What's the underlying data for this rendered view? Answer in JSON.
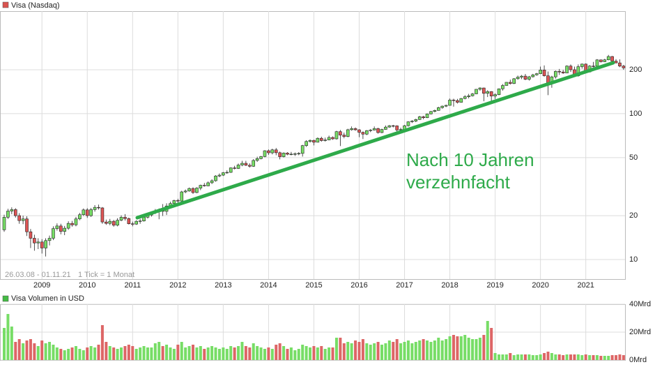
{
  "chart_data": [
    {
      "type": "candlestick",
      "title": "Visa (Nasdaq)",
      "color": "#d9534f",
      "date_range": "26.03.08 - 01.11.21",
      "tick_note": "1 Tick = 1 Monat",
      "annotation": [
        "Nach 10 Jahren",
        "verzehnfacht"
      ],
      "log_scale": true,
      "grid": true,
      "up_color": "#77dd66",
      "down_color": "#dd5555",
      "ylim": [
        7.35,
        504
      ],
      "yticks": [
        10,
        20,
        50,
        100,
        200
      ],
      "categories": [
        null,
        null,
        null,
        null,
        null,
        null,
        null,
        null,
        null,
        null,
        "2009",
        null,
        null,
        null,
        null,
        null,
        null,
        null,
        null,
        null,
        null,
        null,
        "2010",
        null,
        null,
        null,
        null,
        null,
        null,
        null,
        null,
        null,
        null,
        null,
        "2011",
        null,
        null,
        null,
        null,
        null,
        null,
        null,
        null,
        null,
        null,
        null,
        "2012",
        null,
        null,
        null,
        null,
        null,
        null,
        null,
        null,
        null,
        null,
        null,
        "2013",
        null,
        null,
        null,
        null,
        null,
        null,
        null,
        null,
        null,
        null,
        null,
        "2014",
        null,
        null,
        null,
        null,
        null,
        null,
        null,
        null,
        null,
        null,
        null,
        "2015",
        null,
        null,
        null,
        null,
        null,
        null,
        null,
        null,
        null,
        null,
        null,
        "2016",
        null,
        null,
        null,
        null,
        null,
        null,
        null,
        null,
        null,
        null,
        null,
        "2017",
        null,
        null,
        null,
        null,
        null,
        null,
        null,
        null,
        null,
        null,
        null,
        "2018",
        null,
        null,
        null,
        null,
        null,
        null,
        null,
        null,
        null,
        null,
        null,
        "2019",
        null,
        null,
        null,
        null,
        null,
        null,
        null,
        null,
        null,
        null,
        null,
        "2020",
        null,
        null,
        null,
        null,
        null,
        null,
        null,
        null,
        null,
        null,
        null,
        "2021",
        null,
        null,
        null,
        null,
        null,
        null,
        null,
        null,
        null,
        null
      ],
      "open": [
        16,
        19.5,
        21.5,
        22,
        20,
        18.5,
        19,
        15.5,
        14,
        13,
        13.2,
        12,
        13.5,
        14,
        16.3,
        17,
        15.6,
        16.4,
        17.7,
        17.3,
        19,
        20.3,
        21.9,
        20,
        22,
        22.8,
        22.6,
        18.1,
        17.7,
        18.3,
        17.2,
        18.6,
        19.5,
        19.1,
        17.6,
        17.5,
        18.3,
        18.4,
        19.5,
        20.2,
        21.1,
        21.4,
        22,
        21.4,
        23.3,
        24.2,
        25.4,
        25.2,
        29.1,
        29.5,
        30.7,
        28.8,
        30.9,
        32.3,
        32,
        33.6,
        34.7,
        37.4,
        37.9,
        39.4,
        39.6,
        42.5,
        42.1,
        44.5,
        45.7,
        44.3,
        43.6,
        47.8,
        49.2,
        50.8,
        55.7,
        53.9,
        56.5,
        54,
        50.7,
        53.7,
        52.7,
        52.8,
        53.1,
        53.4,
        60.4,
        64.5,
        65.6,
        63.7,
        67.8,
        65.4,
        66,
        68.7,
        67.2,
        75.3,
        71.3,
        69.7,
        77.6,
        79,
        77.5,
        74.5,
        72.4,
        76.5,
        77.2,
        79,
        74.2,
        78,
        80.9,
        82.7,
        82.5,
        77.3,
        78,
        82.7,
        88,
        88.9,
        91.2,
        95.2,
        93.8,
        99.6,
        103.5,
        105.2,
        110,
        112.6,
        114,
        124,
        123,
        119.6,
        127,
        130.7,
        132.5,
        136.7,
        146.9,
        150,
        137.8,
        141.7,
        132,
        135,
        148,
        156,
        164,
        161,
        173.5,
        178,
        180.8,
        172,
        179,
        184.5,
        187.9,
        199,
        181.8,
        161,
        178.7,
        195,
        193,
        190,
        212,
        200,
        181.7,
        210,
        218.7,
        193,
        212,
        211.7,
        233.6,
        227,
        233.8,
        246.4,
        229,
        222.8,
        211.8
      ],
      "high": [
        20.3,
        22.3,
        22.8,
        22.5,
        20.8,
        20,
        19.8,
        16.2,
        14.8,
        14,
        13.8,
        14,
        14.6,
        16.9,
        17.7,
        17.6,
        17,
        18.3,
        18.4,
        19.6,
        20.9,
        22.4,
        22.5,
        22.6,
        23.6,
        23.8,
        22.9,
        18.8,
        19,
        18.7,
        19.2,
        20.1,
        20.5,
        19.4,
        18.2,
        18.6,
        19,
        20,
        20.6,
        21.4,
        22.2,
        22.4,
        24,
        24.3,
        24.9,
        25.7,
        26.1,
        29.6,
        30.2,
        31.2,
        31.3,
        31.3,
        32.6,
        33.5,
        34.3,
        35.5,
        37.9,
        38.9,
        39.8,
        40.9,
        42.8,
        43.9,
        45.5,
        47.5,
        47.5,
        45.7,
        48.8,
        50.7,
        51.3,
        56.2,
        56.8,
        57.5,
        58.2,
        55,
        54.3,
        54.5,
        54.7,
        54.2,
        54.5,
        61.1,
        65.7,
        66.6,
        66.3,
        68.7,
        69.5,
        68.5,
        70.7,
        69.8,
        76.3,
        77.3,
        74.2,
        78.8,
        81.7,
        80.5,
        78.3,
        75.4,
        77.2,
        78.5,
        81.7,
        80,
        78.8,
        83,
        83.6,
        83.8,
        83.2,
        80.1,
        83.8,
        88.6,
        90.3,
        92.3,
        96.7,
        96.7,
        100.3,
        104.2,
        106.6,
        111.5,
        113.7,
        115.3,
        126.9,
        126.6,
        126.3,
        128.1,
        133.9,
        136.6,
        138.6,
        147.5,
        151.6,
        150.9,
        144.8,
        142.6,
        137.8,
        148.8,
        159.5,
        164.5,
        171.1,
        175.2,
        182.4,
        184.1,
        187,
        181.4,
        187.5,
        190.2,
        210.1,
        214.2,
        194.5,
        181.7,
        197.6,
        202.5,
        199.5,
        214.2,
        217.4,
        210.1,
        217.5,
        220.4,
        220.8,
        215.3,
        226.2,
        236.5,
        235.2,
        237.5,
        252.7,
        248.5,
        236.3,
        235.3,
        216
      ],
      "low": [
        15.5,
        19,
        20.5,
        19.4,
        17.6,
        17.5,
        14.5,
        12,
        11.5,
        11.8,
        11,
        10.5,
        12.5,
        13.6,
        15.8,
        14.9,
        14.7,
        16,
        16.8,
        16.9,
        18.6,
        19.9,
        19.3,
        19.6,
        21.3,
        22,
        17.6,
        17.3,
        17.2,
        16.8,
        16.9,
        18.3,
        18.5,
        17.4,
        16.9,
        17.3,
        17.6,
        18.2,
        19.1,
        19.7,
        20.5,
        18.9,
        19.9,
        20.2,
        22.8,
        23.8,
        24.4,
        25,
        28.5,
        29.2,
        28.2,
        28.5,
        29.9,
        31.6,
        31.8,
        33,
        34.2,
        36.7,
        37.4,
        38.7,
        39.3,
        41.5,
        41.8,
        43.6,
        43.8,
        42.7,
        43.2,
        46.7,
        48.6,
        50.3,
        52.2,
        52.6,
        51.9,
        48.6,
        50.1,
        51.9,
        51.8,
        51.3,
        51.9,
        50.8,
        59.2,
        63.3,
        60.6,
        63.5,
        64.3,
        64.4,
        65.8,
        66.2,
        66.5,
        60,
        67.8,
        68.9,
        76.5,
        76.5,
        69,
        67,
        71.3,
        74.7,
        76.8,
        73,
        73.5,
        77.5,
        80.1,
        80.5,
        75.2,
        75.3,
        77.8,
        81.6,
        86.3,
        87.5,
        90.6,
        91.5,
        93.3,
        98.8,
        102.1,
        104.8,
        108.2,
        110.9,
        113.5,
        111.6,
        117.3,
        118.9,
        125.4,
        127.2,
        131.2,
        136,
        143.7,
        121.6,
        130,
        121.6,
        126.1,
        133.8,
        143.8,
        155.5,
        158.2,
        159.4,
        171,
        172.6,
        169.7,
        168.5,
        176.9,
        182.1,
        186.8,
        179.6,
        133.9,
        150.6,
        173.7,
        184.4,
        187.3,
        189.6,
        193,
        180.2,
        179.2,
        203.3,
        190.1,
        191.6,
        208.1,
        211,
        224.3,
        225.6,
        232.3,
        227.2,
        221.2,
        208.3,
        200
      ],
      "close": [
        19.5,
        21.5,
        22,
        20,
        18.5,
        19,
        15.5,
        14,
        13,
        13.2,
        12,
        13.5,
        14,
        16.3,
        17,
        15.6,
        16.4,
        17.7,
        17.3,
        19,
        20.3,
        21.9,
        20,
        22,
        22.8,
        22.6,
        18.1,
        17.7,
        18.3,
        17.2,
        18.6,
        19.5,
        19.1,
        17.6,
        17.5,
        18.3,
        18.4,
        19.5,
        20.2,
        21.1,
        21.4,
        22,
        21.4,
        23.3,
        24.2,
        25.4,
        25.2,
        29.1,
        29.5,
        30.7,
        28.8,
        30.9,
        32.3,
        32,
        33.6,
        34.7,
        37.4,
        37.9,
        39.4,
        39.6,
        42.5,
        42.1,
        44.5,
        45.7,
        44.3,
        43.6,
        47.8,
        49.2,
        50.8,
        55.7,
        53.9,
        56.5,
        54,
        50.7,
        53.7,
        52.7,
        52.8,
        53.1,
        53.4,
        60.4,
        64.5,
        65.6,
        63.7,
        67.8,
        65.4,
        66,
        68.7,
        67.2,
        75.3,
        71.3,
        69.7,
        77.6,
        79,
        77.5,
        74.5,
        72.4,
        76.5,
        77.2,
        79,
        74.2,
        78,
        80.9,
        82.7,
        82.5,
        77.3,
        78,
        82.7,
        88,
        88.9,
        91.2,
        95.2,
        93.8,
        99.6,
        103.5,
        105.2,
        110,
        112.6,
        114,
        124,
        123,
        119.6,
        127,
        130.7,
        132.5,
        136.7,
        146.9,
        150,
        137.8,
        141.7,
        132,
        135,
        148,
        156,
        164,
        161,
        173.5,
        178,
        180.8,
        172,
        179,
        184.5,
        187.9,
        199,
        181.8,
        161,
        178.7,
        195,
        193,
        190,
        212,
        200,
        181.7,
        210,
        218.7,
        193,
        212,
        211.7,
        233.6,
        227,
        233.8,
        246.4,
        229,
        222.8,
        211.8,
        206
      ]
    },
    {
      "type": "bar",
      "title": "Visa Volumen in USD",
      "color": "#44bb44",
      "up_color": "#77dd66",
      "down_color": "#dd6666",
      "grid": true,
      "ylim": [
        0,
        40
      ],
      "yticks": [
        {
          "value": 0,
          "label": "0Mrd"
        },
        {
          "value": 20,
          "label": "20Mrd"
        },
        {
          "value": 40,
          "label": "40Mrd"
        }
      ],
      "values": [
        23,
        33,
        24,
        13,
        15,
        12,
        14,
        15,
        12,
        10,
        14,
        12,
        13,
        11,
        9,
        8,
        7,
        8,
        9,
        10,
        8,
        7,
        9,
        10,
        9,
        11,
        25,
        13,
        10,
        9,
        8,
        9,
        10,
        11,
        10,
        8,
        9,
        10,
        9,
        9,
        12,
        13,
        10,
        11,
        9,
        8,
        11,
        13,
        9,
        10,
        11,
        9,
        10,
        8,
        9,
        10,
        9,
        8,
        9,
        8,
        10,
        9,
        10,
        13,
        10,
        9,
        12,
        10,
        9,
        8,
        9,
        8,
        11,
        12,
        10,
        8,
        9,
        7,
        8,
        11,
        10,
        9,
        10,
        9,
        10,
        8,
        9,
        9,
        16,
        16,
        12,
        13,
        12,
        14,
        13,
        15,
        12,
        11,
        12,
        13,
        11,
        12,
        14,
        13,
        15,
        12,
        13,
        14,
        12,
        13,
        14,
        15,
        14,
        13,
        14,
        16,
        14,
        15,
        17,
        18,
        17,
        17,
        18,
        16,
        15,
        15,
        16,
        18,
        28,
        23,
        5,
        4,
        4,
        4,
        5,
        3.5,
        4,
        4,
        4,
        4,
        3.5,
        3.5,
        4,
        5,
        6,
        5,
        4,
        4,
        3.5,
        4,
        4,
        4,
        4,
        3.5,
        4,
        3.5,
        3.5,
        3.5,
        3,
        3,
        3,
        3.5,
        3.5,
        4,
        3.5
      ]
    }
  ]
}
